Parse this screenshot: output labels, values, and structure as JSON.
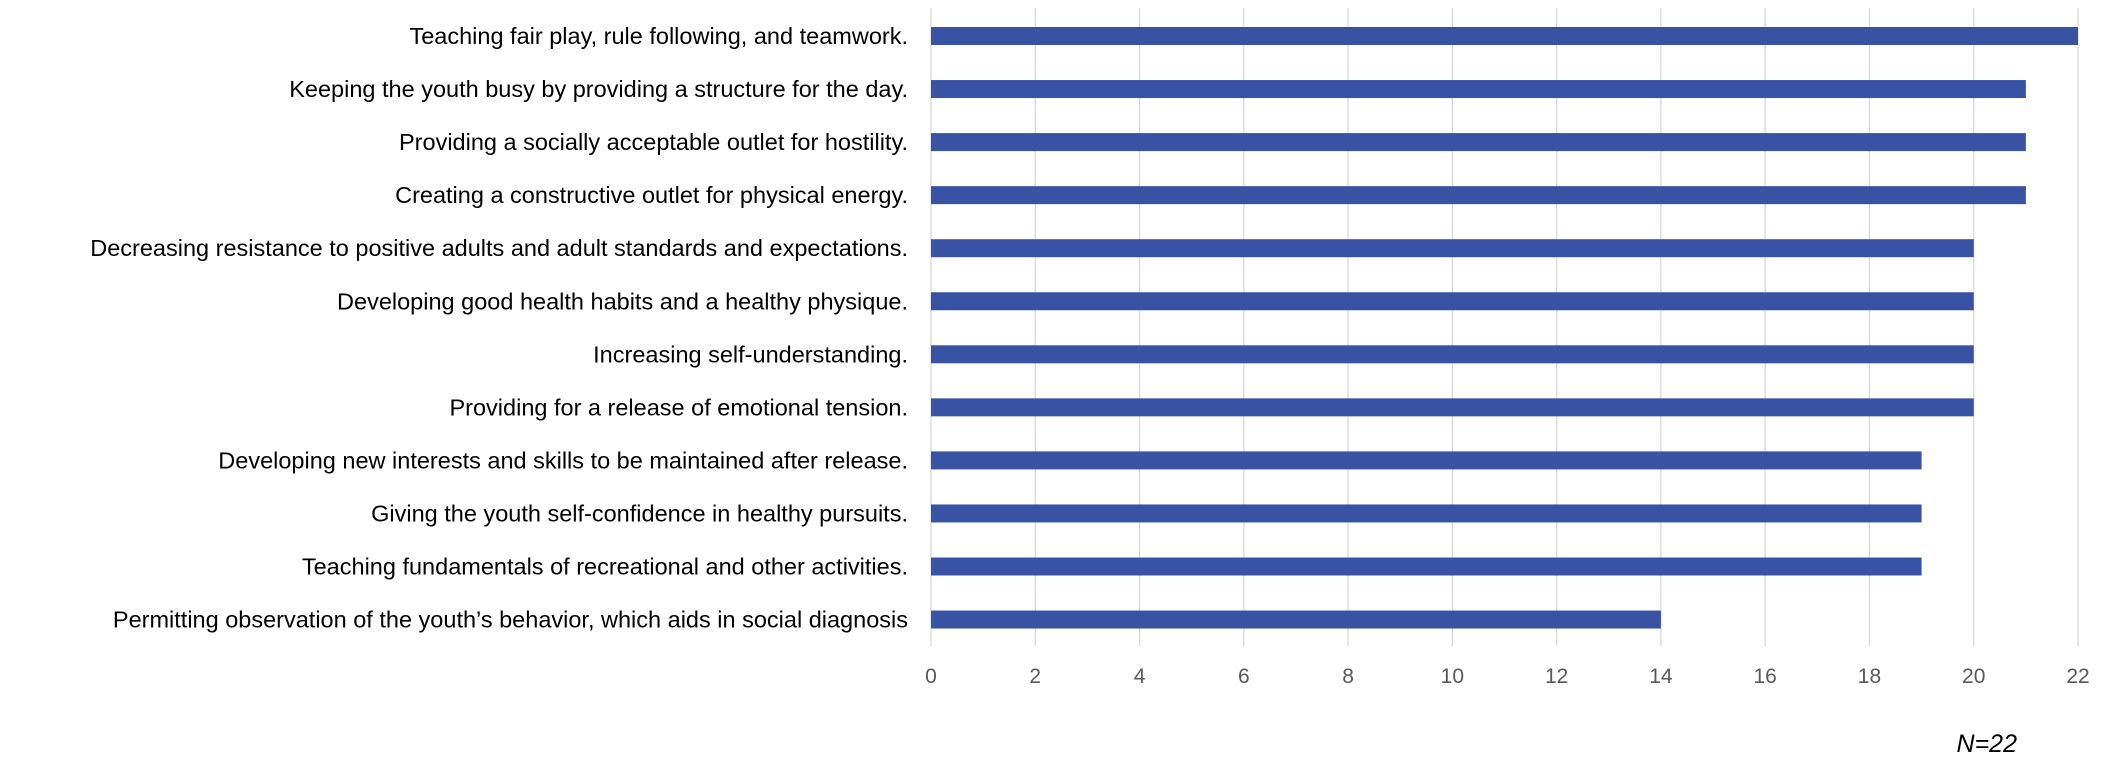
{
  "chart_data": {
    "type": "bar",
    "orientation": "horizontal",
    "categories": [
      "Teaching fair play, rule following, and teamwork.",
      "Keeping the youth busy by providing a structure for the day.",
      "Providing a socially acceptable outlet for hostility.",
      "Creating a constructive outlet for physical energy.",
      "Decreasing resistance to positive adults and adult standards and expectations.",
      "Developing good health habits and a healthy physique.",
      "Increasing self-understanding.",
      "Providing for a release of emotional tension.",
      "Developing new interests and skills to be maintained after release.",
      "Giving the youth self-confidence in healthy pursuits.",
      "Teaching fundamentals of recreational and other activities.",
      "Permitting observation of the youth’s behavior, which aids in social diagnosis"
    ],
    "values": [
      22,
      21,
      21,
      21,
      20,
      20,
      20,
      20,
      19,
      19,
      19,
      14
    ],
    "x_ticks": [
      "0",
      "2",
      "4",
      "6",
      "8",
      "10",
      "12",
      "14",
      "16",
      "18",
      "20",
      "22"
    ],
    "xlim": [
      0,
      22
    ],
    "grid": "vertical",
    "legend": "none",
    "bar_color": "#3853a4",
    "note": "N=22"
  }
}
